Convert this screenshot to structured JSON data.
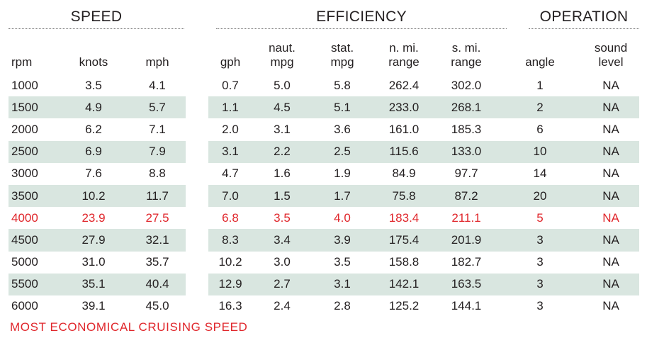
{
  "groups": {
    "speed": "SPEED",
    "efficiency": "EFFICIENCY",
    "operation": "OPERATION"
  },
  "columns": {
    "rpm": "rpm",
    "knots": "knots",
    "mph": "mph",
    "gph": "gph",
    "naut_mpg": "naut.\nmpg",
    "stat_mpg": "stat.\nmpg",
    "nmi_range": "n. mi.\nrange",
    "smi_range": "s. mi.\nrange",
    "angle": "angle",
    "sound_level": "sound\nlevel"
  },
  "rows": [
    [
      "1000",
      "3.5",
      "4.1",
      "0.7",
      "5.0",
      "5.8",
      "262.4",
      "302.0",
      "1",
      "NA"
    ],
    [
      "1500",
      "4.9",
      "5.7",
      "1.1",
      "4.5",
      "5.1",
      "233.0",
      "268.1",
      "2",
      "NA"
    ],
    [
      "2000",
      "6.2",
      "7.1",
      "2.0",
      "3.1",
      "3.6",
      "161.0",
      "185.3",
      "6",
      "NA"
    ],
    [
      "2500",
      "6.9",
      "7.9",
      "3.1",
      "2.2",
      "2.5",
      "115.6",
      "133.0",
      "10",
      "NA"
    ],
    [
      "3000",
      "7.6",
      "8.8",
      "4.7",
      "1.6",
      "1.9",
      "84.9",
      "97.7",
      "14",
      "NA"
    ],
    [
      "3500",
      "10.2",
      "11.7",
      "7.0",
      "1.5",
      "1.7",
      "75.8",
      "87.2",
      "20",
      "NA"
    ],
    [
      "4000",
      "23.9",
      "27.5",
      "6.8",
      "3.5",
      "4.0",
      "183.4",
      "211.1",
      "5",
      "NA"
    ],
    [
      "4500",
      "27.9",
      "32.1",
      "8.3",
      "3.4",
      "3.9",
      "175.4",
      "201.9",
      "3",
      "NA"
    ],
    [
      "5000",
      "31.0",
      "35.7",
      "10.2",
      "3.0",
      "3.5",
      "158.8",
      "182.7",
      "3",
      "NA"
    ],
    [
      "5500",
      "35.1",
      "40.4",
      "12.9",
      "2.7",
      "3.1",
      "142.1",
      "163.5",
      "3",
      "NA"
    ],
    [
      "6000",
      "39.1",
      "45.0",
      "16.3",
      "2.4",
      "2.8",
      "125.2",
      "144.1",
      "3",
      "NA"
    ]
  ],
  "highlight_row_rpm": "4000",
  "colors": {
    "text": "#231f20",
    "highlight": "#e0262b",
    "band": "#d9e6e0"
  },
  "footnote": "MOST ECONOMICAL CRUISING SPEED"
}
